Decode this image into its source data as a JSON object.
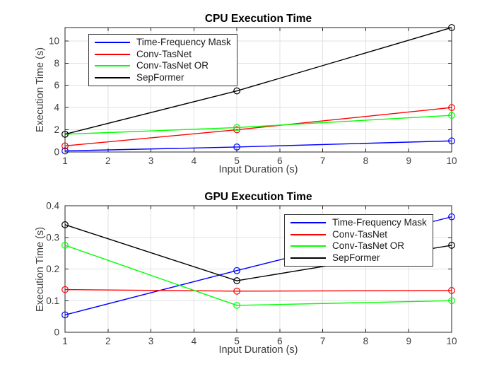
{
  "figure": {
    "background_color": "#ffffff",
    "axis_color": "#262626",
    "grid_color": "#e2e2e2",
    "tick_label_color": "#3d3d3d"
  },
  "chart_data": [
    {
      "type": "line",
      "title": "CPU Execution Time",
      "xlabel": "Input Duration (s)",
      "ylabel": "Execution Time (s)",
      "x": [
        1,
        5,
        10
      ],
      "xlim": [
        1,
        10
      ],
      "ylim": [
        0,
        11.2
      ],
      "xticks": [
        1,
        2,
        3,
        4,
        5,
        6,
        7,
        8,
        9,
        10
      ],
      "xtick_labels": [
        "1",
        "2",
        "3",
        "4",
        "5",
        "6",
        "7",
        "8",
        "9",
        "10"
      ],
      "yticks": [
        0,
        2,
        4,
        6,
        8,
        10
      ],
      "ytick_labels": [
        "0",
        "2",
        "4",
        "6",
        "8",
        "10"
      ],
      "grid": true,
      "marker": "circle",
      "legend_location": "northwest",
      "series": [
        {
          "name": "Time-Frequency Mask",
          "color": "#0000ff",
          "values": [
            0.1,
            0.45,
            1.0
          ]
        },
        {
          "name": "Conv-TasNet",
          "color": "#ff0000",
          "values": [
            0.55,
            2.0,
            4.0
          ]
        },
        {
          "name": "Conv-TasNet OR",
          "color": "#00ff00",
          "values": [
            1.6,
            2.2,
            3.3
          ]
        },
        {
          "name": "SepFormer",
          "color": "#000000",
          "values": [
            1.6,
            5.5,
            11.2
          ]
        }
      ]
    },
    {
      "type": "line",
      "title": "GPU Execution Time",
      "xlabel": "Input Duration (s)",
      "ylabel": "Execution Time (s)",
      "x": [
        1,
        5,
        10
      ],
      "xlim": [
        1,
        10
      ],
      "ylim": [
        0,
        0.4
      ],
      "xticks": [
        1,
        2,
        3,
        4,
        5,
        6,
        7,
        8,
        9,
        10
      ],
      "xtick_labels": [
        "1",
        "2",
        "3",
        "4",
        "5",
        "6",
        "7",
        "8",
        "9",
        "10"
      ],
      "yticks": [
        0,
        0.1,
        0.2,
        0.3,
        0.4
      ],
      "ytick_labels": [
        "0",
        "0.1",
        "0.2",
        "0.3",
        "0.4"
      ],
      "grid": true,
      "marker": "circle",
      "legend_location": "northeast",
      "series": [
        {
          "name": "Time-Frequency Mask",
          "color": "#0000ff",
          "values": [
            0.055,
            0.195,
            0.365
          ]
        },
        {
          "name": "Conv-TasNet",
          "color": "#ff0000",
          "values": [
            0.135,
            0.13,
            0.132
          ]
        },
        {
          "name": "Conv-TasNet OR",
          "color": "#00ff00",
          "values": [
            0.275,
            0.085,
            0.1
          ]
        },
        {
          "name": "SepFormer",
          "color": "#000000",
          "values": [
            0.34,
            0.163,
            0.275
          ]
        }
      ]
    }
  ]
}
